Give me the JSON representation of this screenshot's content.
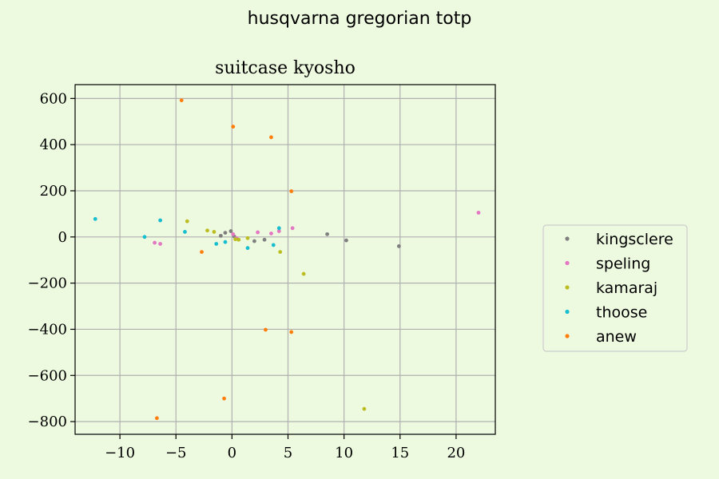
{
  "figure": {
    "suptitle": "husqvarna gregorian totp"
  },
  "chart_data": {
    "type": "scatter",
    "title": "suitcase kyosho",
    "xlabel": "",
    "ylabel": "",
    "xlim": [
      -14,
      23.5
    ],
    "ylim": [
      -855,
      660
    ],
    "xticks": [
      -10,
      -5,
      0,
      5,
      10,
      15,
      20
    ],
    "yticks": [
      600,
      400,
      200,
      0,
      -200,
      -400,
      -600,
      -800
    ],
    "xtick_labels": [
      "−10",
      "−5",
      "0",
      "5",
      "10",
      "15",
      "20"
    ],
    "ytick_labels": [
      "600",
      "400",
      "200",
      "0",
      "−200",
      "−400",
      "−600",
      "−800"
    ],
    "grid": true,
    "legend_position": "right",
    "series": [
      {
        "name": "kingsclere",
        "color": "#7f7f7f",
        "points": [
          [
            -1,
            5
          ],
          [
            -0.6,
            18
          ],
          [
            -0.1,
            25
          ],
          [
            0.2,
            2
          ],
          [
            2,
            -18
          ],
          [
            2.9,
            -12
          ],
          [
            8.5,
            12
          ],
          [
            10.2,
            -15
          ],
          [
            14.9,
            -40
          ]
        ]
      },
      {
        "name": "speling",
        "color": "#e377c2",
        "points": [
          [
            -6.9,
            -25
          ],
          [
            -6.4,
            -30
          ],
          [
            0.1,
            12
          ],
          [
            0.4,
            -5
          ],
          [
            2.3,
            20
          ],
          [
            3.5,
            15
          ],
          [
            4.2,
            25
          ],
          [
            5.4,
            38
          ],
          [
            22,
            105
          ]
        ]
      },
      {
        "name": "kamaraj",
        "color": "#bcbd22",
        "points": [
          [
            -4,
            68
          ],
          [
            -2.2,
            28
          ],
          [
            -1.6,
            22
          ],
          [
            0.3,
            -10
          ],
          [
            0.6,
            -12
          ],
          [
            1.4,
            -5
          ],
          [
            4.3,
            -65
          ],
          [
            6.4,
            -160
          ],
          [
            11.8,
            -745
          ]
        ]
      },
      {
        "name": "thoose",
        "color": "#17becf",
        "points": [
          [
            -12.2,
            78
          ],
          [
            -7.8,
            0
          ],
          [
            -6.4,
            72
          ],
          [
            -4.2,
            22
          ],
          [
            -1.4,
            -30
          ],
          [
            -0.6,
            -22
          ],
          [
            1.4,
            -48
          ],
          [
            3.7,
            -35
          ],
          [
            4.2,
            38
          ]
        ]
      },
      {
        "name": "anew",
        "color": "#ff7f0e",
        "points": [
          [
            -4.5,
            592
          ],
          [
            0.1,
            478
          ],
          [
            3.5,
            432
          ],
          [
            5.3,
            198
          ],
          [
            -2.7,
            -65
          ],
          [
            3,
            -402
          ],
          [
            5.3,
            -412
          ],
          [
            -0.7,
            -700
          ],
          [
            -6.7,
            -785
          ]
        ]
      }
    ]
  }
}
